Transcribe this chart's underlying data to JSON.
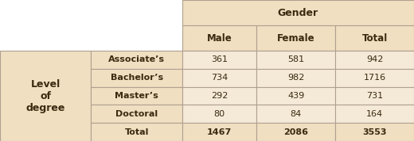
{
  "header_gender": "Gender",
  "col_headers": [
    "Male",
    "Female",
    "Total"
  ],
  "row_label_main": [
    "Level",
    "of",
    "degree"
  ],
  "row_labels": [
    "Associate’s",
    "Bachelor’s",
    "Master’s",
    "Doctoral",
    "Total"
  ],
  "data": [
    [
      361,
      581,
      942
    ],
    [
      734,
      982,
      1716
    ],
    [
      292,
      439,
      731
    ],
    [
      80,
      84,
      164
    ],
    [
      1467,
      2086,
      3553
    ]
  ],
  "bg_color": "#f0dfc0",
  "header_bg": "#e8c89a",
  "cell_bg": "#f5ead8",
  "border_color": "#b0a090",
  "text_color": "#3a2a10",
  "bold_rows": [
    4
  ],
  "fig_width": 5.2,
  "fig_height": 1.78
}
